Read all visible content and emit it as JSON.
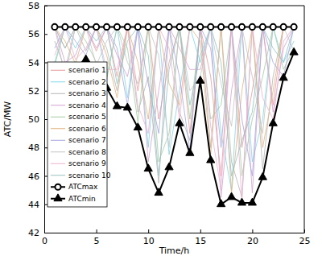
{
  "chart_data": {
    "type": "line",
    "x_label": "Time/h",
    "y_label": "ATC/MW",
    "x": [
      1,
      2,
      3,
      4,
      5,
      6,
      7,
      8,
      9,
      10,
      11,
      12,
      13,
      14,
      15,
      16,
      17,
      18,
      19,
      20,
      21,
      22,
      23,
      24
    ],
    "xlim": [
      0,
      25
    ],
    "xticks": [
      0,
      5,
      10,
      15,
      20,
      25
    ],
    "ylim": [
      42,
      58
    ],
    "yticks": [
      42,
      44,
      46,
      48,
      50,
      52,
      54,
      56,
      58
    ],
    "legend": "upper left",
    "series": [
      {
        "name": "scenario 1",
        "color": "#e89a9a",
        "values": [
          56.5,
          55.0,
          56.5,
          56.5,
          54.8,
          56.5,
          53.0,
          56.5,
          52.0,
          56.5,
          50.0,
          54.0,
          56.5,
          49.0,
          56.5,
          53.0,
          46.0,
          56.5,
          48.0,
          52.0,
          56.5,
          51.0,
          56.5,
          56.5
        ]
      },
      {
        "name": "scenario 2",
        "color": "#7fd6e8",
        "values": [
          54.0,
          56.5,
          55.0,
          56.5,
          56.5,
          53.0,
          56.5,
          51.5,
          56.5,
          48.0,
          56.5,
          47.5,
          52.0,
          56.5,
          54.0,
          56.5,
          49.0,
          45.0,
          56.5,
          47.0,
          50.0,
          56.5,
          54.0,
          55.5
        ]
      },
      {
        "name": "scenario 3",
        "color": "#b4b4b4",
        "values": [
          55.5,
          53.5,
          56.5,
          54.8,
          56.5,
          55.0,
          52.0,
          56.5,
          50.5,
          53.0,
          45.5,
          56.5,
          50.5,
          48.5,
          56.5,
          48.0,
          56.5,
          47.0,
          44.5,
          56.5,
          46.5,
          53.0,
          56.5,
          56.5
        ]
      },
      {
        "name": "scenario 4",
        "color": "#d2a2d2",
        "values": [
          56.5,
          54.0,
          54.5,
          56.5,
          55.0,
          56.5,
          54.5,
          53.0,
          56.5,
          47.0,
          52.0,
          56.5,
          55.0,
          53.5,
          53.5,
          56.5,
          44.5,
          52.0,
          56.5,
          44.8,
          56.5,
          50.5,
          55.0,
          56.5
        ]
      },
      {
        "name": "scenario 5",
        "color": "#a2cca2",
        "values": [
          53.8,
          56.5,
          56.5,
          55.5,
          54.0,
          52.8,
          56.5,
          55.0,
          49.8,
          56.5,
          47.0,
          49.0,
          56.5,
          50.0,
          56.5,
          50.0,
          51.0,
          56.5,
          46.0,
          50.0,
          53.0,
          56.5,
          53.5,
          55.0
        ]
      },
      {
        "name": "scenario 6",
        "color": "#e2b27e",
        "values": [
          56.5,
          55.5,
          53.9,
          56.5,
          56.5,
          54.5,
          51.5,
          56.5,
          54.0,
          50.0,
          56.5,
          52.5,
          51.0,
          56.5,
          55.5,
          47.5,
          56.5,
          44.8,
          52.0,
          56.5,
          48.0,
          52.0,
          56.5,
          56.5
        ]
      },
      {
        "name": "scenario 7",
        "color": "#a4a4e2",
        "values": [
          55.0,
          56.5,
          55.5,
          54.5,
          56.5,
          56.5,
          55.0,
          51.0,
          56.5,
          52.5,
          49.0,
          56.5,
          53.0,
          47.8,
          56.5,
          55.0,
          48.0,
          56.5,
          50.0,
          46.0,
          56.5,
          54.0,
          53.0,
          56.5
        ]
      },
      {
        "name": "scenario 8",
        "color": "#c4c4c4",
        "values": [
          56.5,
          53.0,
          56.5,
          56.5,
          53.8,
          55.5,
          56.5,
          54.0,
          52.5,
          56.5,
          54.5,
          48.0,
          56.5,
          52.0,
          53.0,
          56.5,
          52.5,
          49.5,
          56.5,
          53.0,
          49.0,
          56.5,
          56.5,
          54.8
        ]
      },
      {
        "name": "scenario 9",
        "color": "#f0b0d0",
        "values": [
          54.5,
          56.5,
          54.2,
          55.0,
          56.5,
          53.5,
          53.5,
          56.5,
          51.0,
          49.0,
          56.5,
          55.0,
          50.0,
          56.5,
          56.5,
          49.5,
          45.0,
          56.5,
          44.2,
          56.5,
          51.5,
          50.0,
          55.5,
          56.5
        ]
      },
      {
        "name": "scenario 10",
        "color": "#92c2c2",
        "values": [
          56.5,
          55.0,
          56.5,
          56.5,
          55.5,
          56.5,
          52.5,
          55.5,
          56.5,
          54.5,
          46.0,
          53.5,
          56.5,
          51.0,
          54.5,
          56.5,
          54.0,
          46.0,
          48.5,
          50.5,
          56.5,
          55.0,
          54.0,
          56.5
        ]
      },
      {
        "name": "ATCmax",
        "color": "#000000",
        "marker": "circle",
        "values": [
          56.5,
          56.5,
          56.5,
          56.5,
          56.5,
          56.5,
          56.5,
          56.5,
          56.5,
          56.5,
          56.5,
          56.5,
          56.5,
          56.5,
          56.5,
          56.5,
          56.5,
          56.5,
          56.5,
          56.5,
          56.5,
          56.5,
          56.5,
          56.5
        ]
      },
      {
        "name": "ATCmin",
        "color": "#000000",
        "marker": "triangle",
        "values": [
          53.2,
          52.4,
          53.7,
          54.2,
          53.5,
          52.2,
          50.9,
          50.8,
          49.4,
          46.5,
          44.8,
          46.6,
          49.7,
          47.6,
          52.7,
          47.1,
          44.0,
          44.5,
          44.1,
          44.1,
          45.9,
          49.7,
          52.9,
          54.7
        ]
      }
    ]
  }
}
